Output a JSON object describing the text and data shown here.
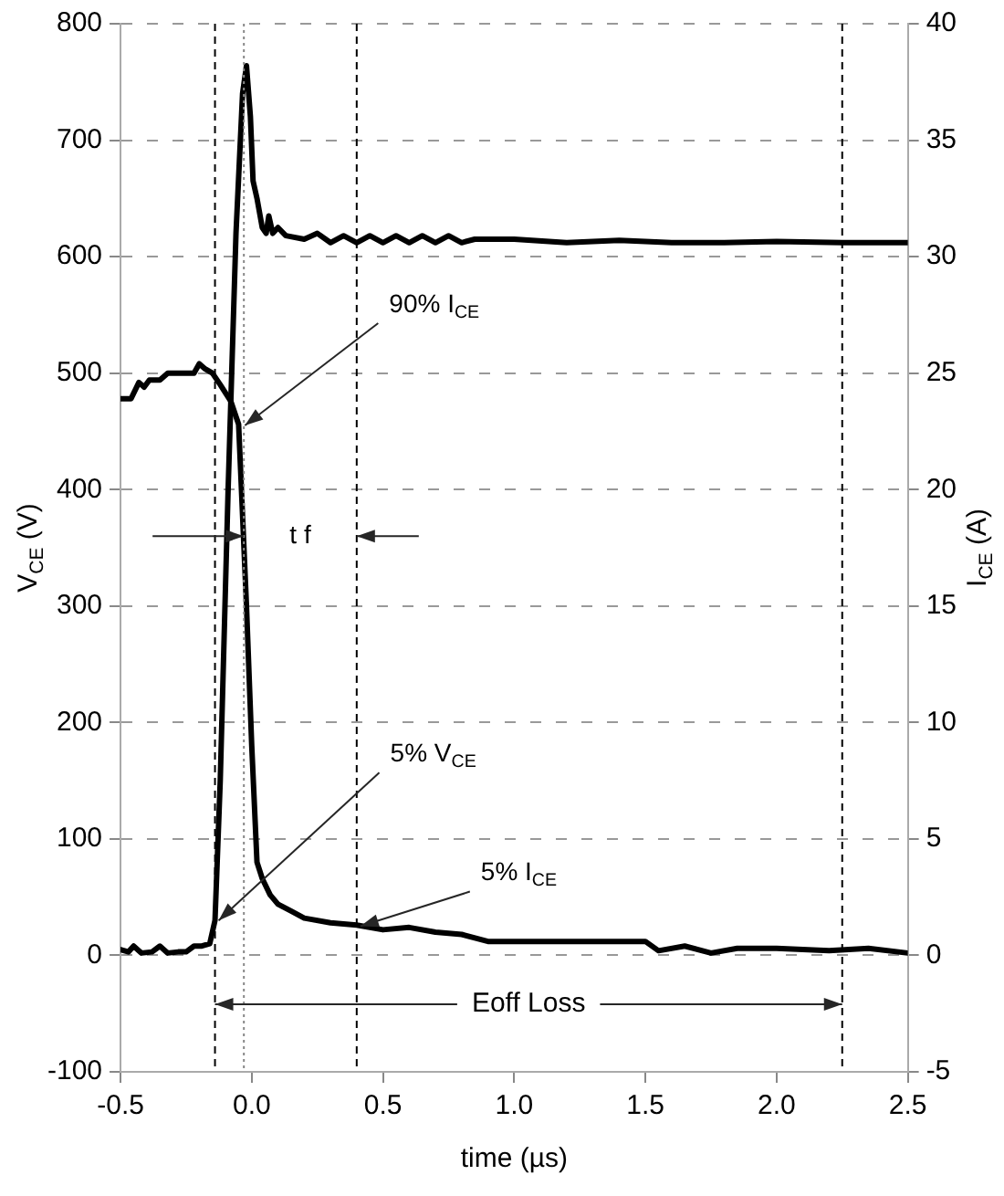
{
  "chart_data": {
    "type": "line",
    "xlabel": "time (µs)",
    "ylabel": "V$_{CE}$ (V)",
    "y2label": "I$_{CE}$ (A)",
    "xlim": [
      -0.5,
      2.5
    ],
    "xticks": [
      {
        "value": -0.5,
        "label": "-0.5"
      },
      {
        "value": 0,
        "label": "0.0"
      },
      {
        "value": 0.5,
        "label": "0.5"
      },
      {
        "value": 1,
        "label": "1.0"
      },
      {
        "value": 1.5,
        "label": "1.5"
      },
      {
        "value": 2,
        "label": "2.0"
      },
      {
        "value": 2.5,
        "label": "2.5"
      }
    ],
    "ylim": [
      -100,
      800
    ],
    "yticks": [
      -100,
      0,
      100,
      200,
      300,
      400,
      500,
      600,
      700,
      800
    ],
    "y2lim": [
      -5,
      40
    ],
    "y2ticks": [
      -5,
      0,
      5,
      10,
      15,
      20,
      25,
      30,
      35,
      40
    ],
    "grid": "y",
    "legend": false,
    "marker": "none",
    "line_style": "solid",
    "series": [
      {
        "color": "#000000",
        "x": [
          -0.5,
          -0.47,
          -0.45,
          -0.42,
          -0.38,
          -0.35,
          -0.32,
          -0.28,
          -0.25,
          -0.22,
          -0.19,
          -0.16,
          -0.14,
          -0.12,
          -0.09,
          -0.06,
          -0.035,
          -0.02,
          -0.005,
          0.005,
          0.02,
          0.04,
          0.055,
          0.065,
          0.08,
          0.1,
          0.13,
          0.2,
          0.25,
          0.3,
          0.35,
          0.4,
          0.45,
          0.5,
          0.55,
          0.6,
          0.65,
          0.7,
          0.75,
          0.8,
          0.85,
          1.0,
          1.2,
          1.4,
          1.6,
          1.8,
          2.0,
          2.25,
          2.5
        ],
        "values": [
          5,
          3,
          8,
          2,
          3,
          8,
          2,
          3,
          3,
          8,
          8,
          10,
          30,
          150,
          400,
          620,
          740,
          764,
          720,
          665,
          650,
          625,
          620,
          635,
          620,
          625,
          618,
          615,
          620,
          612,
          618,
          612,
          618,
          612,
          618,
          612,
          618,
          612,
          618,
          612,
          615,
          615,
          612,
          614,
          612,
          612,
          613,
          612,
          612
        ]
      },
      {
        "color": "#000000",
        "axis": "y2",
        "x": [
          -0.5,
          -0.46,
          -0.43,
          -0.41,
          -0.39,
          -0.35,
          -0.32,
          -0.27,
          -0.22,
          -0.2,
          -0.18,
          -0.15,
          -0.12,
          -0.08,
          -0.05,
          -0.02,
          0.0,
          0.02,
          0.04,
          0.07,
          0.1,
          0.15,
          0.2,
          0.3,
          0.4,
          0.5,
          0.6,
          0.7,
          0.8,
          0.9,
          1.0,
          1.3,
          1.5,
          1.55,
          1.65,
          1.75,
          1.85,
          2.0,
          2.2,
          2.35,
          2.5
        ],
        "values": [
          23.9,
          23.9,
          24.6,
          24.4,
          24.7,
          24.7,
          25.0,
          25.0,
          25.0,
          25.4,
          25.2,
          25.0,
          24.5,
          23.8,
          22.8,
          15,
          9,
          4,
          3.3,
          2.6,
          2.2,
          1.9,
          1.6,
          1.4,
          1.3,
          1.1,
          1.2,
          1.0,
          0.9,
          0.6,
          0.6,
          0.6,
          0.6,
          0.2,
          0.4,
          0.1,
          0.3,
          0.3,
          0.2,
          0.3,
          0.1
        ]
      }
    ],
    "ref_lines": [
      {
        "axis": "x",
        "value": -0.14,
        "line_style": "dashed",
        "color": "#000000"
      },
      {
        "axis": "x",
        "value": -0.03,
        "line_style": "dotted",
        "color": "#888888"
      },
      {
        "axis": "x",
        "value": 0.4,
        "line_style": "dashed",
        "color": "#000000"
      },
      {
        "axis": "x",
        "value": 2.25,
        "line_style": "dashed",
        "color": "#000000"
      }
    ],
    "annotations": [
      {
        "text": "90% I$_{CE}$",
        "x": -0.04,
        "y": 455
      },
      {
        "text": "5% V$_{CE}$",
        "x": -0.14,
        "y": 30
      },
      {
        "text": "5% I$_{CE}$",
        "x": 0.4,
        "y": 25
      },
      {
        "text": "t f",
        "x": -0.03,
        "y": 360
      },
      {
        "text": "Eoff Loss",
        "x": -0.14,
        "y": -42
      }
    ]
  }
}
